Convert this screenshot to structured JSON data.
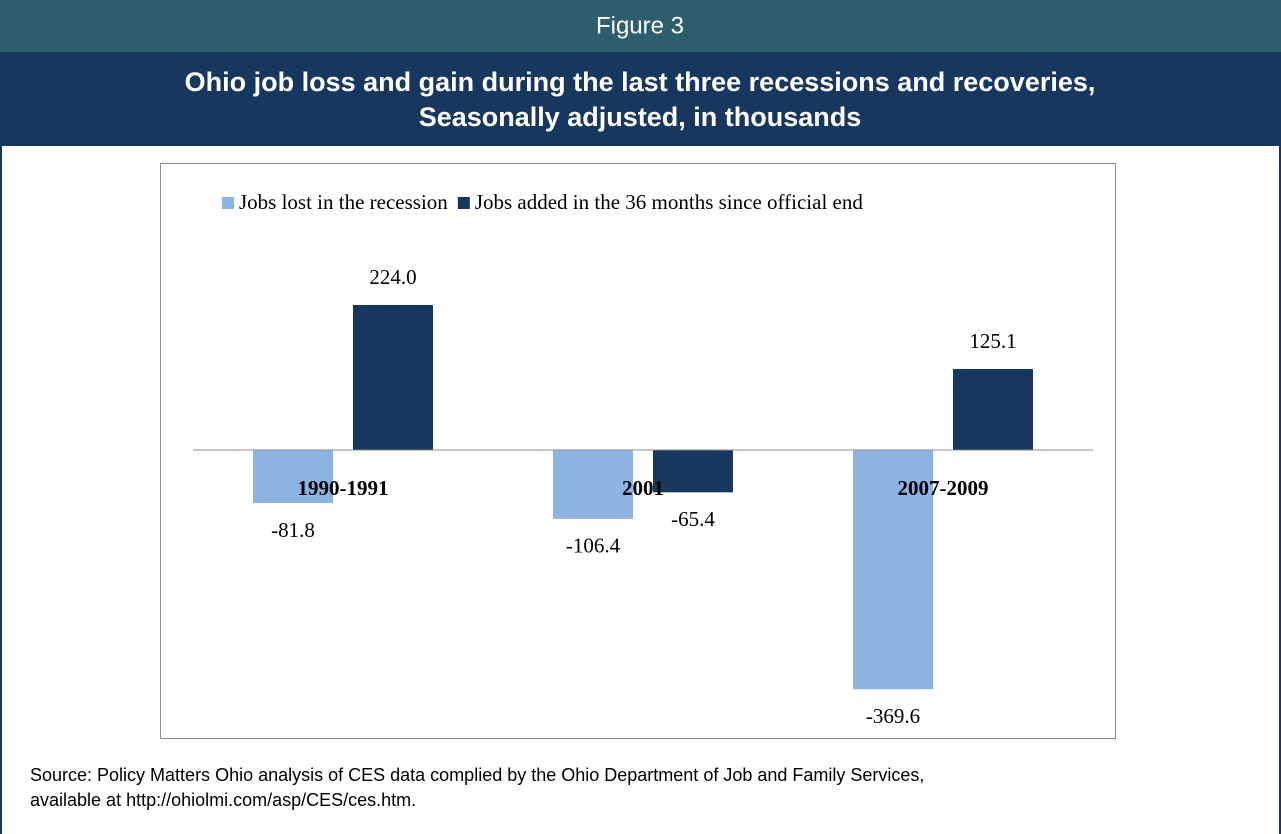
{
  "header": {
    "figure": "Figure 3"
  },
  "chart_data": {
    "type": "bar",
    "title": [
      "Ohio job loss and gain during the last three recessions and recoveries,",
      "Seasonally adjusted, in thousands"
    ],
    "categories": [
      "1990-1991",
      "2001",
      "2007-2009"
    ],
    "series": [
      {
        "name": "Jobs lost in the recession",
        "color": "#8db3e2",
        "values": [
          -81.8,
          -106.4,
          -369.6
        ],
        "value_labels": [
          "-81.8",
          "-106.4",
          "-369.6"
        ]
      },
      {
        "name": "Jobs added in the 36 months since official end",
        "color": "#17375e",
        "values": [
          224.0,
          -65.4,
          125.1
        ],
        "value_labels": [
          "224.0",
          "-65.4",
          "125.1"
        ]
      }
    ],
    "legend": "top",
    "source": [
      "Source: Policy Matters Ohio analysis of CES data complied by the Ohio Department of Job and Family Services,",
      "available at http://ohiolmi.com/asp/CES/ces.htm."
    ]
  }
}
